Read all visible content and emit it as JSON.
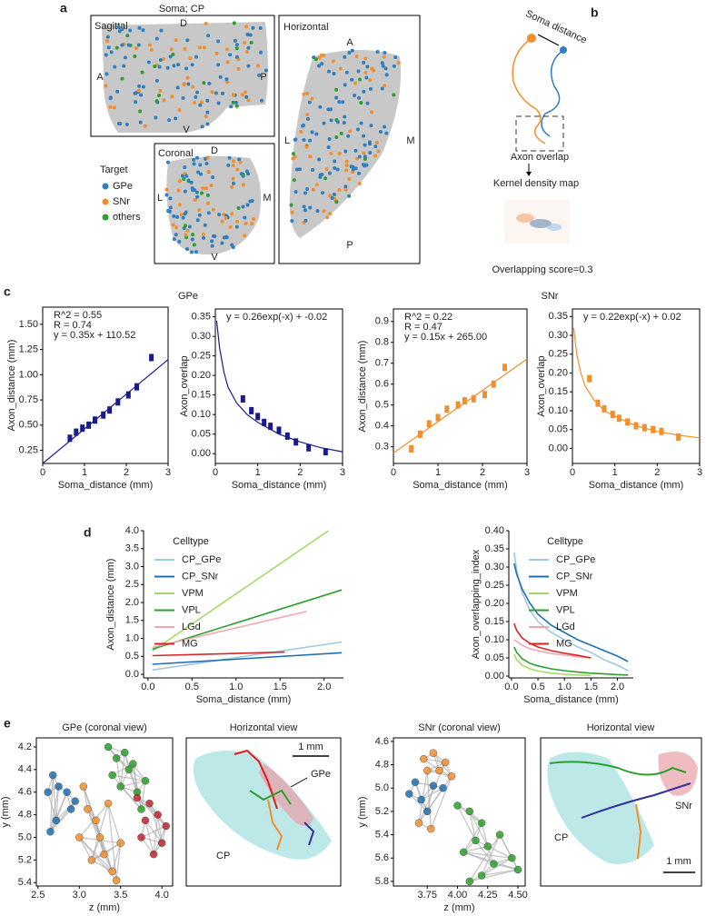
{
  "panel_a": {
    "label": "a",
    "title": "Soma; CP",
    "sagittal": {
      "title": "Sagittal",
      "top": "D",
      "left": "A",
      "right": "P",
      "bottom": "V"
    },
    "horizontal": {
      "title": "Horizontal",
      "top": "A",
      "left": "L",
      "right": "M",
      "bottom": "P"
    },
    "coronal": {
      "title": "Coronal",
      "top": "D",
      "left": "L",
      "right": "M",
      "bottom": "V"
    },
    "legend": {
      "title": "Target",
      "items": [
        {
          "name": "GPe",
          "color": "#2f7fc1"
        },
        {
          "name": "SNr",
          "color": "#f28e2b"
        },
        {
          "name": "others",
          "color": "#2ca02c"
        }
      ]
    }
  },
  "panel_b": {
    "label": "b",
    "soma": "Soma distance",
    "overlap": "Axon overlap",
    "kde": "Kernel density map",
    "score": "Overlapping score=0.3"
  },
  "panel_c": {
    "label": "c",
    "titles": [
      "GPe",
      "SNr"
    ]
  },
  "panel_d": {
    "label": "d"
  },
  "panel_e": {
    "label": "e",
    "views": [
      {
        "title": "Horizontal view",
        "scale": "1 mm",
        "target": "GPe",
        "region": "CP"
      },
      {
        "title": "Horizontal view",
        "scale": "1 mm",
        "target": "SNr",
        "region": "CP"
      }
    ]
  },
  "chart_data": [
    {
      "type": "scatter",
      "xlabel": "Soma_distance (mm)",
      "ylabel": "Axon_distance (mm)",
      "color": "#1a1a8c",
      "annotation": [
        "R^2 = 0.55",
        "R = 0.74",
        "y = 0.35x + 110.52"
      ],
      "x": [
        0.65,
        0.8,
        0.95,
        1.1,
        1.25,
        1.45,
        1.6,
        1.8,
        2.05,
        2.25,
        2.6
      ],
      "values": [
        0.37,
        0.43,
        0.47,
        0.5,
        0.55,
        0.6,
        0.65,
        0.73,
        0.8,
        0.88,
        1.17
      ],
      "fit": {
        "x": [
          0,
          3
        ],
        "values": [
          0.12,
          1.15
        ]
      },
      "xlim": [
        0,
        3
      ],
      "ylim": [
        0.12,
        1.67
      ],
      "xticks": [
        0,
        1,
        2,
        3
      ],
      "yticks": [
        0.25,
        {
          "value": 0.5,
          "label": "0.50"
        },
        0.75,
        {
          "value": 1,
          "label": "1.00"
        },
        1.25,
        {
          "value": 1.5,
          "label": "1.50"
        }
      ]
    },
    {
      "type": "scatter",
      "xlabel": "Soma_distance (mm)",
      "ylabel": "Axon_overlap",
      "color": "#1a1a8c",
      "annotation": [
        "y = 0.26exp(-x) + -0.02"
      ],
      "x": [
        0.65,
        0.85,
        1.0,
        1.15,
        1.3,
        1.5,
        1.7,
        1.9,
        2.2,
        2.6
      ],
      "values": [
        0.14,
        0.11,
        0.095,
        0.08,
        0.07,
        0.06,
        0.045,
        0.03,
        0.015,
        0.005
      ],
      "fit": {
        "x": [
          0.03,
          0.1,
          0.2,
          0.3,
          0.5,
          0.75,
          1,
          1.5,
          2,
          2.5,
          3
        ],
        "values": [
          0.34,
          0.27,
          0.21,
          0.17,
          0.13,
          0.1,
          0.08,
          0.05,
          0.03,
          0.015,
          0.005
        ]
      },
      "xlim": [
        0,
        3
      ],
      "ylim": [
        -0.025,
        0.37
      ],
      "xticks": [
        0,
        1,
        2,
        3
      ],
      "yticks": [
        {
          "value": 0,
          "label": "0.00"
        },
        0.05,
        {
          "value": 0.1,
          "label": "0.10"
        },
        0.15,
        {
          "value": 0.2,
          "label": "0.20"
        },
        0.25,
        {
          "value": 0.3,
          "label": "0.30"
        },
        0.35
      ]
    },
    {
      "type": "scatter",
      "xlabel": "Soma_distance (mm)",
      "ylabel": "Axon_distance (mm)",
      "color": "#f28e2b",
      "annotation": [
        "R^2 = 0.22",
        "R = 0.47",
        "y = 0.15x + 265.00"
      ],
      "x": [
        0.4,
        0.6,
        0.8,
        1.0,
        1.2,
        1.45,
        1.6,
        1.8,
        2.05,
        2.25,
        2.5
      ],
      "values": [
        0.29,
        0.36,
        0.41,
        0.44,
        0.48,
        0.5,
        0.52,
        0.53,
        0.55,
        0.6,
        0.68
      ],
      "fit": {
        "x": [
          0,
          3
        ],
        "values": [
          0.27,
          0.72
        ]
      },
      "xlim": [
        0,
        3
      ],
      "ylim": [
        0.22,
        0.96
      ],
      "xticks": [
        0,
        1,
        2,
        3
      ],
      "yticks": [
        0.3,
        0.4,
        0.5,
        0.6,
        0.7,
        0.8,
        0.9
      ]
    },
    {
      "type": "scatter",
      "xlabel": "Soma_distance (mm)",
      "ylabel": "Axon_overlap",
      "color": "#f28e2b",
      "annotation": [
        "y = 0.22exp(-x) + 0.02"
      ],
      "x": [
        0.4,
        0.6,
        0.75,
        0.95,
        1.1,
        1.3,
        1.5,
        1.7,
        1.9,
        2.1,
        2.5
      ],
      "values": [
        0.185,
        0.12,
        0.105,
        0.09,
        0.08,
        0.07,
        0.06,
        0.055,
        0.05,
        0.045,
        0.03
      ],
      "fit": {
        "x": [
          0.03,
          0.1,
          0.2,
          0.3,
          0.5,
          0.75,
          1,
          1.5,
          2,
          2.5,
          3
        ],
        "values": [
          0.32,
          0.25,
          0.2,
          0.165,
          0.13,
          0.1,
          0.085,
          0.06,
          0.045,
          0.035,
          0.028
        ]
      },
      "xlim": [
        0,
        3
      ],
      "ylim": [
        -0.04,
        0.37
      ],
      "xticks": [
        0,
        1,
        2,
        3
      ],
      "yticks": [
        {
          "value": 0,
          "label": "0.00"
        },
        0.05,
        {
          "value": 0.1,
          "label": "0.10"
        },
        0.15,
        {
          "value": 0.2,
          "label": "0.20"
        },
        0.25,
        {
          "value": 0.3,
          "label": "0.30"
        },
        0.35
      ]
    },
    {
      "type": "line",
      "xlabel": "Soma_distance (mm)",
      "ylabel": "Axon_distance (mm)",
      "legend_title": "Celltype",
      "legend": "upper left",
      "series": [
        {
          "name": "CP_GPe",
          "color": "#9ecae1",
          "x": [
            0.05,
            2.2
          ],
          "values": [
            0.12,
            0.9
          ]
        },
        {
          "name": "CP_SNr",
          "color": "#1f6fb4",
          "x": [
            0.05,
            2.2
          ],
          "values": [
            0.28,
            0.6
          ]
        },
        {
          "name": "VPM",
          "color": "#a6d96a",
          "x": [
            0.05,
            2.05
          ],
          "values": [
            0.65,
            4.0
          ]
        },
        {
          "name": "VPL",
          "color": "#2ca02c",
          "x": [
            0.05,
            2.2
          ],
          "values": [
            0.7,
            2.35
          ]
        },
        {
          "name": "LGd",
          "color": "#f4a6b0",
          "x": [
            0.05,
            1.8
          ],
          "values": [
            0.75,
            1.75
          ]
        },
        {
          "name": "MG",
          "color": "#d62728",
          "x": [
            0.05,
            1.55
          ],
          "values": [
            0.52,
            0.62
          ]
        }
      ],
      "xlim": [
        -0.05,
        2.22
      ],
      "ylim": [
        -0.1,
        4.0
      ],
      "xticks": [
        {
          "value": 0,
          "label": "0.0"
        },
        0.5,
        {
          "value": 1,
          "label": "1.0"
        },
        1.5,
        {
          "value": 2,
          "label": "2.0"
        }
      ],
      "yticks": [
        {
          "value": 0,
          "label": "0.0"
        },
        0.5,
        {
          "value": 1,
          "label": "1.0"
        },
        1.5,
        {
          "value": 2,
          "label": "2.0"
        },
        2.5,
        {
          "value": 3,
          "label": "3.0"
        },
        3.5,
        {
          "value": 4,
          "label": "4.0"
        }
      ]
    },
    {
      "type": "line",
      "xlabel": "Soma_distance (mm)",
      "ylabel": "Axon_overlapping_index",
      "legend_title": "Celltype",
      "legend": "upper right",
      "series": [
        {
          "name": "CP_GPe",
          "color": "#9ecae1",
          "x": [
            0.05,
            0.1,
            0.2,
            0.35,
            0.5,
            0.75,
            1.0,
            1.25,
            1.5,
            1.75,
            2.0,
            2.2
          ],
          "values": [
            0.34,
            0.29,
            0.23,
            0.18,
            0.15,
            0.12,
            0.1,
            0.08,
            0.065,
            0.045,
            0.03,
            0.015
          ]
        },
        {
          "name": "CP_SNr",
          "color": "#1f6fb4",
          "x": [
            0.05,
            0.1,
            0.2,
            0.35,
            0.5,
            0.75,
            1.0,
            1.25,
            1.5,
            1.75,
            2.0,
            2.2
          ],
          "values": [
            0.31,
            0.28,
            0.24,
            0.2,
            0.17,
            0.14,
            0.12,
            0.1,
            0.085,
            0.07,
            0.055,
            0.04
          ]
        },
        {
          "name": "VPM",
          "color": "#a6d96a",
          "x": [
            0.05,
            0.1,
            0.2,
            0.35,
            0.5,
            0.75,
            1.0,
            1.25,
            1.5
          ],
          "values": [
            0.06,
            0.045,
            0.03,
            0.02,
            0.014,
            0.008,
            0.005,
            0.003,
            0.002
          ]
        },
        {
          "name": "VPL",
          "color": "#2ca02c",
          "x": [
            0.05,
            0.1,
            0.2,
            0.35,
            0.5,
            0.75,
            1.0,
            1.25,
            1.5,
            1.75,
            2.0,
            2.2
          ],
          "values": [
            0.08,
            0.065,
            0.048,
            0.035,
            0.028,
            0.02,
            0.015,
            0.011,
            0.008,
            0.006,
            0.004,
            0.003
          ]
        },
        {
          "name": "LGd",
          "color": "#f4a6b0",
          "x": [
            0.05,
            0.1,
            0.2,
            0.35,
            0.5,
            0.75,
            1.0,
            1.25,
            1.5
          ],
          "values": [
            0.1,
            0.095,
            0.085,
            0.075,
            0.07,
            0.062,
            0.058,
            0.053,
            0.05
          ]
        },
        {
          "name": "MG",
          "color": "#d62728",
          "x": [
            0.05,
            0.1,
            0.2,
            0.35,
            0.5,
            0.75,
            1.0,
            1.25,
            1.5
          ],
          "values": [
            0.145,
            0.125,
            0.105,
            0.09,
            0.08,
            0.07,
            0.063,
            0.057,
            0.05
          ]
        }
      ],
      "xlim": [
        -0.05,
        2.3
      ],
      "ylim": [
        -0.005,
        0.4
      ],
      "xticks": [
        {
          "value": 0,
          "label": "0.0"
        },
        0.5,
        {
          "value": 1,
          "label": "1.0"
        },
        1.5,
        {
          "value": 2,
          "label": "2.0"
        }
      ],
      "yticks": [
        {
          "value": 0,
          "label": "0.00"
        },
        0.05,
        {
          "value": 0.1,
          "label": "0.10"
        },
        0.15,
        {
          "value": 0.2,
          "label": "0.20"
        },
        0.25,
        {
          "value": 0.3,
          "label": "0.30"
        },
        0.35,
        {
          "value": 0.4,
          "label": "0.40"
        }
      ]
    },
    {
      "type": "scatter",
      "title": "GPe (coronal view)",
      "xlabel": "z (mm)",
      "ylabel": "y (mm)",
      "y_inverted": true,
      "edges": true,
      "series": [
        {
          "color": "#1f6fb4",
          "x": [
            2.62,
            2.68,
            2.75,
            2.72,
            2.65,
            2.85,
            2.95,
            2.9
          ],
          "values": [
            4.6,
            4.45,
            4.55,
            4.85,
            4.95,
            4.6,
            4.68,
            4.75
          ]
        },
        {
          "color": "#f28e2b",
          "x": [
            3.05,
            3.1,
            3.2,
            3.25,
            3.3,
            3.4,
            3.15,
            3.5,
            3.0,
            3.35,
            3.45
          ],
          "values": [
            4.55,
            4.75,
            4.85,
            5.0,
            5.15,
            5.3,
            5.2,
            5.05,
            5.0,
            4.7,
            5.38
          ]
        },
        {
          "color": "#2ca02c",
          "x": [
            3.35,
            3.45,
            3.55,
            3.6,
            3.5,
            3.7,
            3.8,
            3.75,
            3.65,
            3.4
          ],
          "values": [
            4.2,
            4.3,
            4.25,
            4.4,
            4.55,
            4.6,
            4.5,
            4.75,
            4.35,
            4.45
          ]
        },
        {
          "color": "#c0262d",
          "x": [
            3.7,
            3.85,
            3.95,
            4.05,
            4.0,
            3.9,
            3.75,
            3.8
          ],
          "values": [
            4.65,
            4.7,
            4.8,
            4.9,
            5.05,
            5.15,
            5.0,
            4.85
          ]
        }
      ],
      "xlim": [
        2.48,
        4.13
      ],
      "ylim": [
        4.12,
        5.43
      ],
      "xticks": [
        2.5,
        {
          "value": 3,
          "label": "3.0"
        },
        3.5,
        {
          "value": 4,
          "label": "4.0"
        }
      ],
      "yticks": [
        4.2,
        4.4,
        4.6,
        4.8,
        {
          "value": 5,
          "label": "5.0"
        },
        5.2,
        5.4
      ]
    },
    {
      "type": "scatter",
      "title": "SNr (coronal view)",
      "xlabel": "z (mm)",
      "ylabel": "y (mm)",
      "y_inverted": true,
      "edges": true,
      "series": [
        {
          "color": "#1f6fb4",
          "x": [
            3.6,
            3.65,
            3.7,
            3.75,
            3.8,
            3.88
          ],
          "values": [
            5.05,
            4.95,
            5.1,
            5.2,
            4.98,
            5.0
          ]
        },
        {
          "color": "#f28e2b",
          "x": [
            3.72,
            3.8,
            3.85,
            3.9,
            3.95,
            3.75,
            3.68,
            3.78
          ],
          "values": [
            4.75,
            4.7,
            4.85,
            4.78,
            4.9,
            4.85,
            5.3,
            5.35
          ]
        },
        {
          "color": "#2ca02c",
          "x": [
            4.0,
            4.1,
            4.2,
            4.15,
            4.25,
            4.05,
            4.3,
            4.45,
            4.5,
            4.2,
            4.35,
            4.1
          ],
          "values": [
            5.15,
            5.2,
            5.3,
            5.45,
            5.5,
            5.55,
            5.65,
            5.6,
            5.7,
            5.75,
            5.4,
            5.8
          ]
        }
      ],
      "xlim": [
        3.47,
        4.56
      ],
      "ylim": [
        4.57,
        5.84
      ],
      "xticks": [
        3.75,
        {
          "value": 4,
          "label": "4.00"
        },
        4.25,
        {
          "value": 4.5,
          "label": "4.50"
        }
      ],
      "yticks": [
        4.6,
        4.8,
        {
          "value": 5,
          "label": "5.0"
        },
        5.2,
        5.4,
        5.6,
        5.8
      ]
    }
  ]
}
